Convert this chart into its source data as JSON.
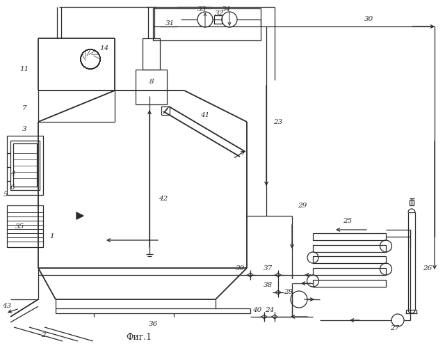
{
  "bg_color": "#ffffff",
  "line_color": "#2a2a2a",
  "title": "Фиг.1",
  "fig_width": 6.4,
  "fig_height": 4.97,
  "dpi": 100
}
